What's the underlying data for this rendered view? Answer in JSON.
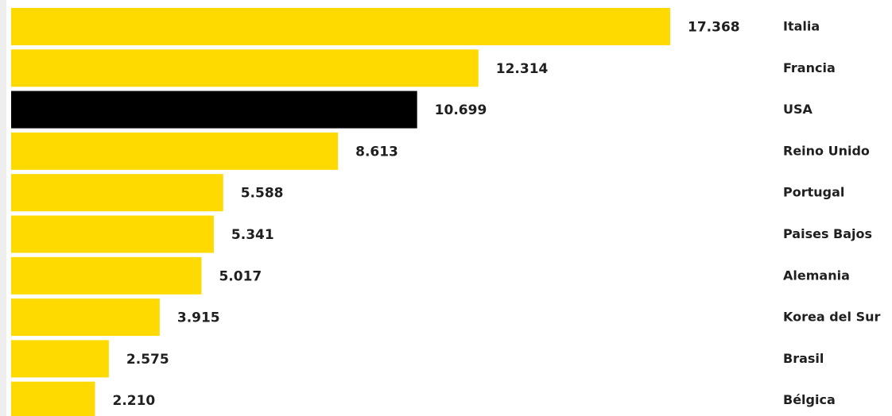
{
  "chart_data": {
    "type": "bar",
    "orientation": "horizontal",
    "categories": [
      "Italia",
      "Francia",
      "USA",
      "Reino Unido",
      "Portugal",
      "Paises Bajos",
      "Alemania",
      "Korea del Sur",
      "Brasil",
      "Bélgica"
    ],
    "values": [
      17368,
      12314,
      10699,
      8613,
      5588,
      5341,
      5017,
      3915,
      2575,
      2210
    ],
    "value_labels": [
      "17.368",
      "12.314",
      "10.699",
      "8.613",
      "5.588",
      "5.341",
      "5.017",
      "3.915",
      "2.575",
      "2.210"
    ],
    "highlight_index": 2,
    "colors": {
      "bar": "#FFDA00",
      "highlight": "#000000",
      "text": "#1f1f1f"
    },
    "grid": false,
    "legend": "none",
    "title": "",
    "xlabel": "",
    "ylabel": ""
  }
}
